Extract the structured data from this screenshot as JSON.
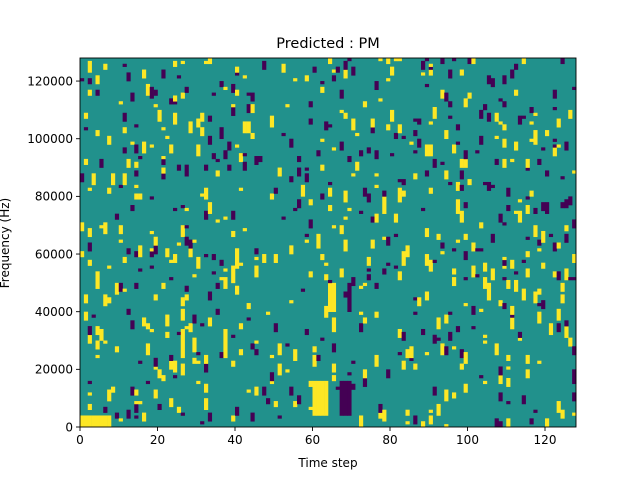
{
  "chart_data": {
    "type": "heatmap",
    "title": "Predicted : PM",
    "xlabel": "Time step",
    "ylabel": "Frequency (Hz)",
    "xlim": [
      0,
      128
    ],
    "ylim": [
      0,
      128000
    ],
    "x_ticks": [
      0,
      20,
      40,
      60,
      80,
      100,
      120
    ],
    "y_ticks": [
      0,
      20000,
      40000,
      60000,
      80000,
      100000,
      120000
    ],
    "x_tick_labels": [
      "0",
      "20",
      "40",
      "60",
      "80",
      "100",
      "120"
    ],
    "y_tick_labels": [
      "0",
      "20000",
      "40000",
      "60000",
      "80000",
      "100000",
      "120000"
    ],
    "grid": false,
    "value_levels": [
      0,
      1,
      2
    ],
    "colormap": {
      "0": "#440154",
      "1": "#21918c",
      "2": "#fde725"
    },
    "background_value": 1,
    "notable_regions": [
      {
        "value": 2,
        "x": [
          0,
          7
        ],
        "y": [
          0,
          4000
        ]
      },
      {
        "value": 2,
        "x": [
          60,
          64
        ],
        "y": [
          4000,
          16000
        ]
      },
      {
        "value": 0,
        "x": [
          67,
          70
        ],
        "y": [
          4000,
          16000
        ]
      },
      {
        "value": 2,
        "x": [
          64,
          66
        ],
        "y": [
          40000,
          50000
        ]
      },
      {
        "value": 0,
        "x": [
          69,
          70
        ],
        "y": [
          40000,
          50000
        ]
      },
      {
        "value": 2,
        "x": [
          37,
          38
        ],
        "y": [
          24000,
          34000
        ]
      },
      {
        "value": 2,
        "x": [
          26,
          27
        ],
        "y": [
          24000,
          34000
        ]
      },
      {
        "value": 2,
        "x": [
          105,
          106
        ],
        "y": [
          44000,
          50000
        ]
      }
    ],
    "cell_sets": {
      "seed": 20240611,
      "grid_size": [
        128,
        128
      ],
      "random_value2_fraction": 0.025,
      "random_value0_fraction": 0.02
    }
  }
}
